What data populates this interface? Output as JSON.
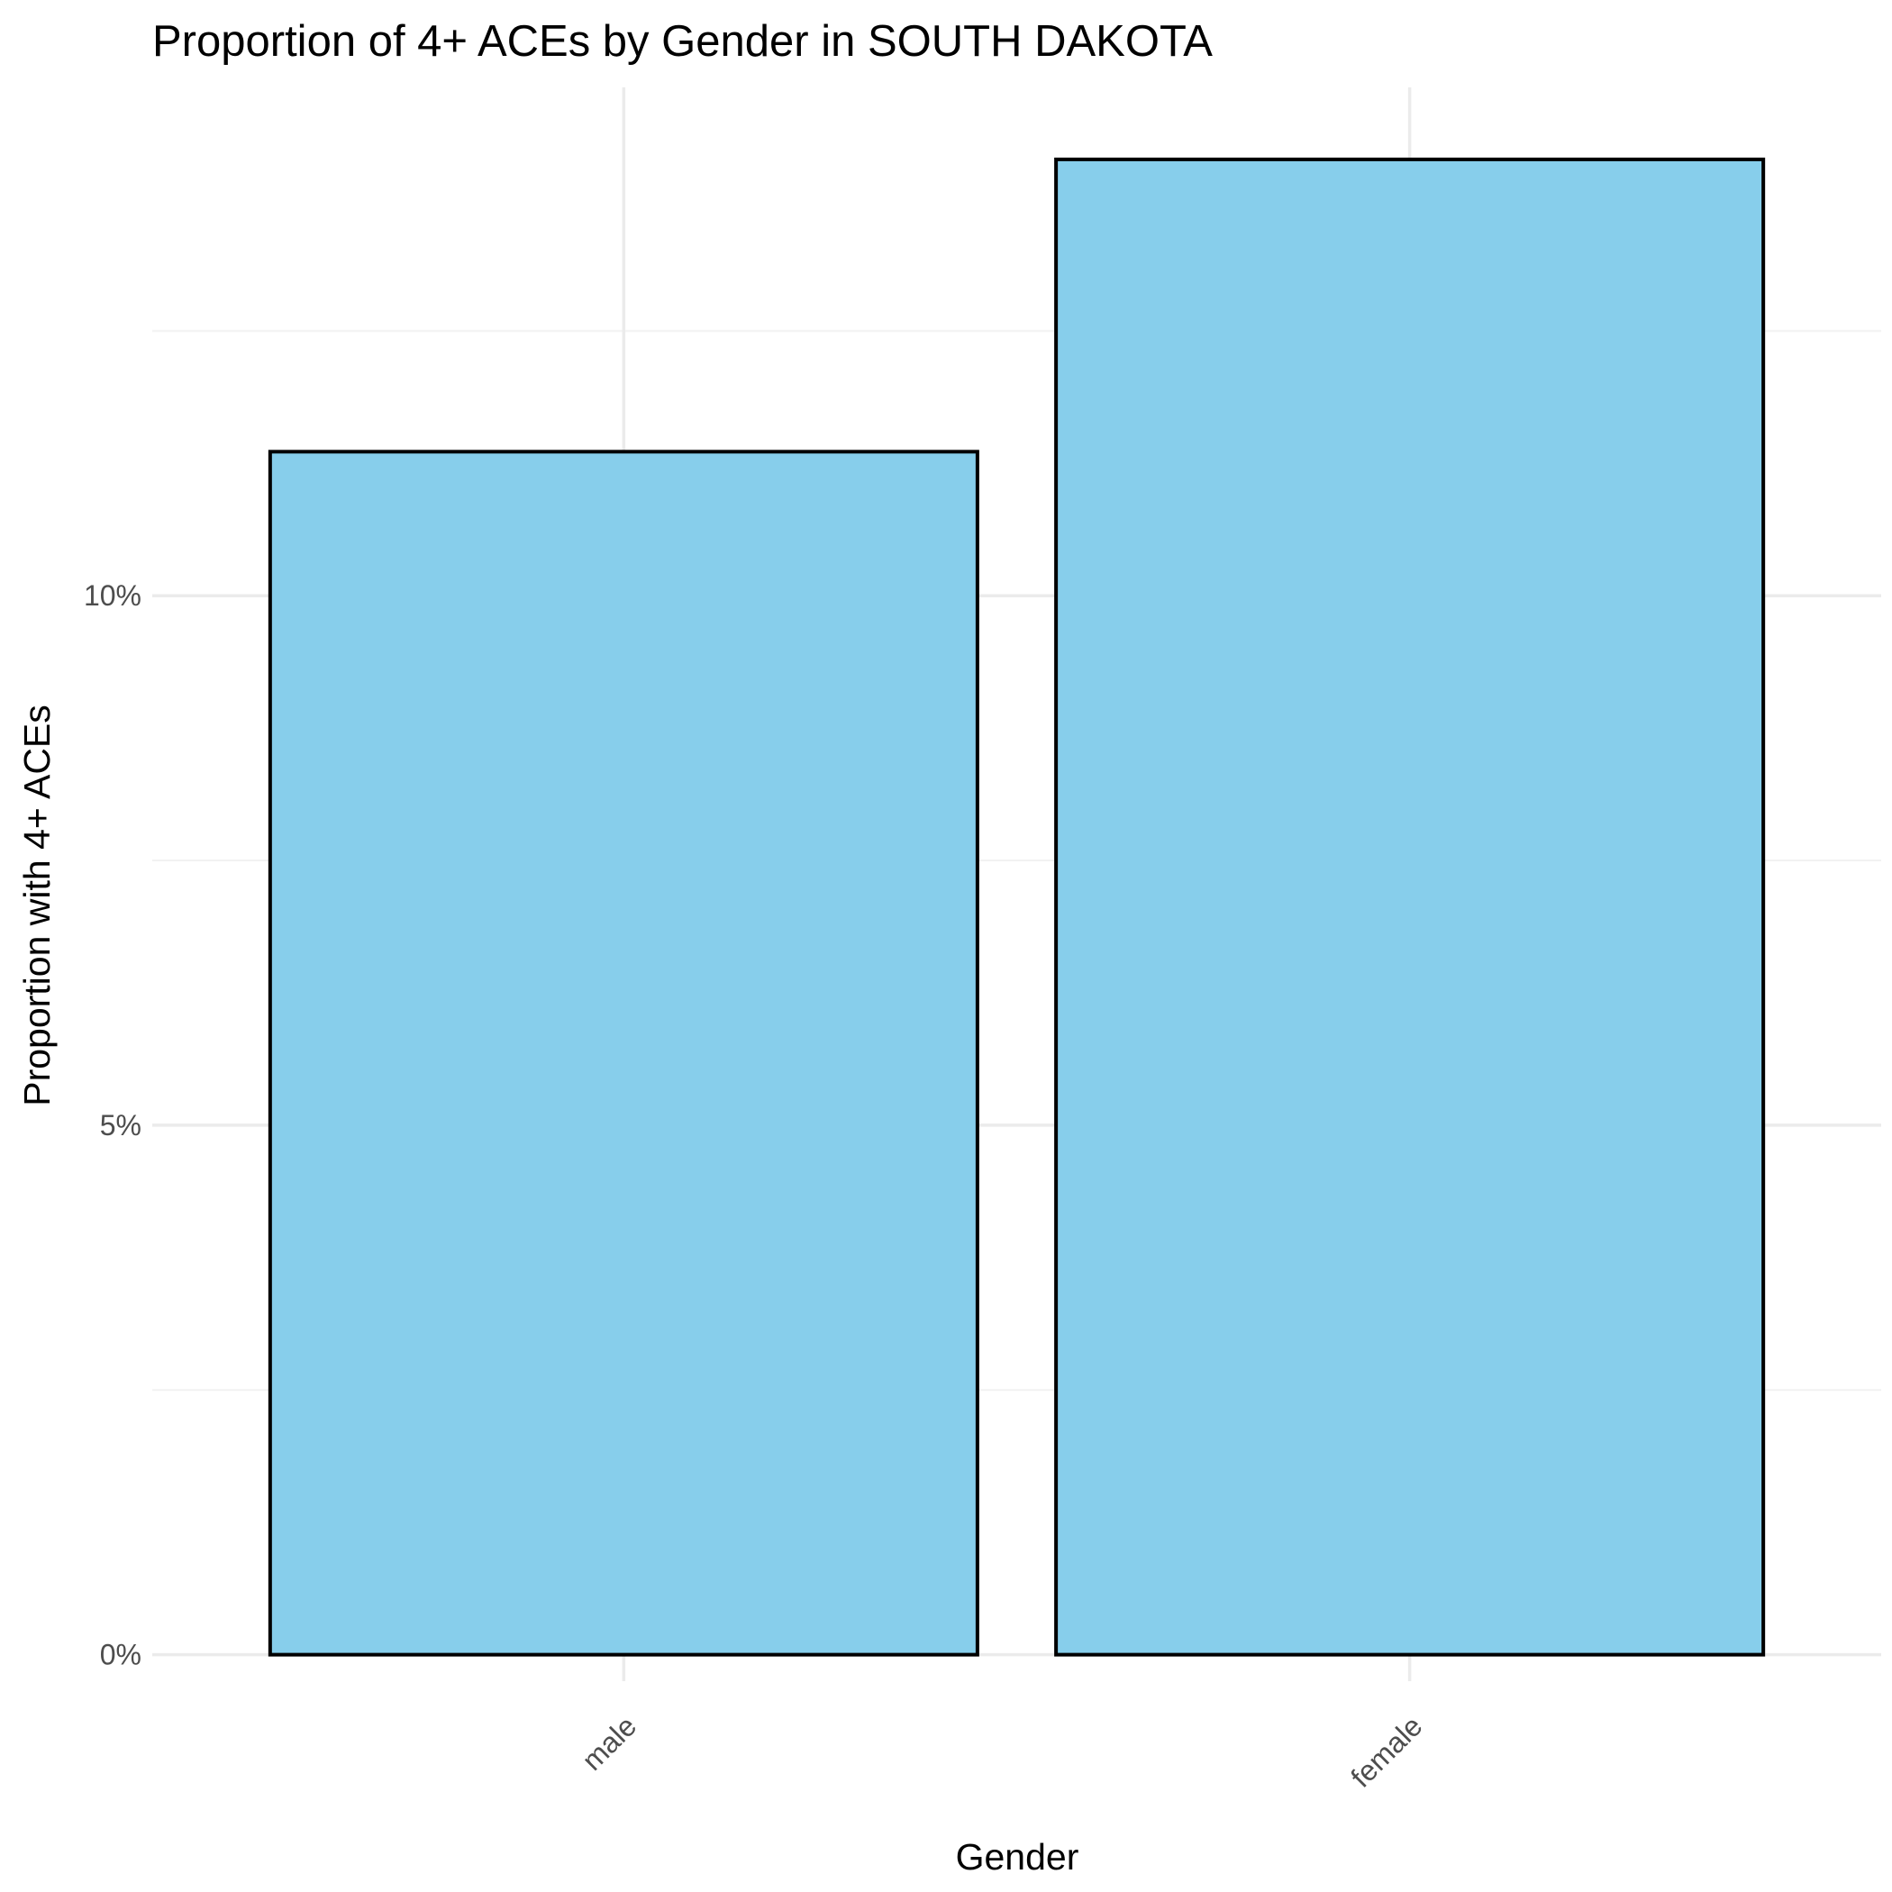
{
  "chart_data": {
    "type": "bar",
    "title": "Proportion of 4+ ACEs by Gender in SOUTH DAKOTA",
    "xlabel": "Gender",
    "ylabel": "Proportion with 4+ ACEs",
    "categories": [
      "male",
      "female"
    ],
    "values": [
      0.1136,
      0.1412
    ],
    "ylim": [
      -0.0025,
      0.148
    ],
    "yticks": [
      0,
      0.05,
      0.1
    ],
    "ytick_labels": [
      "0%",
      "5%",
      "10%"
    ],
    "grid": true,
    "legend": "none",
    "colors": {
      "bar_fill": "#87CEEB",
      "bar_stroke": "#000000",
      "grid": "#ebebeb",
      "tick_text": "#4d4d4d"
    }
  }
}
